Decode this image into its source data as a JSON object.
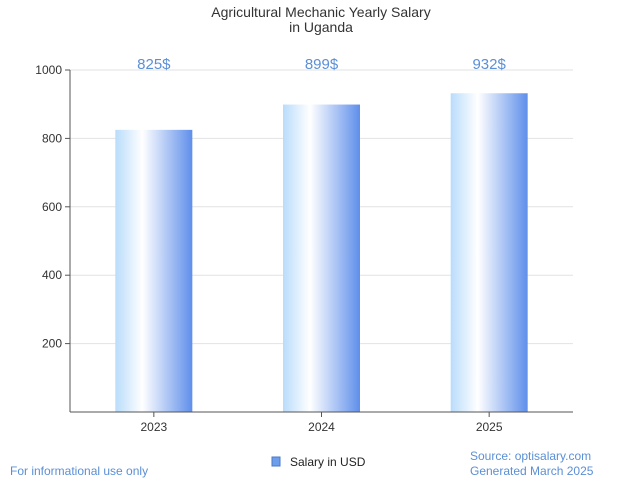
{
  "colors": {
    "accent": "#6d9eeb",
    "label_blue": "#5b8fd6",
    "bar_dark": "#5f8fea",
    "bar_light": "#ffffff",
    "bar_mid": "#b9dcfb",
    "axis": "#555555",
    "grid": "#e2e2e2"
  },
  "chart_data": {
    "type": "bar",
    "title": [
      "Agricultural Mechanic Yearly Salary",
      "in Uganda"
    ],
    "categories": [
      "2023",
      "2024",
      "2025"
    ],
    "series": [
      {
        "name": "Salary in USD",
        "values": [
          825,
          899,
          932
        ]
      }
    ],
    "data_labels": [
      "825$",
      "899$",
      "932$"
    ],
    "ylim": [
      0,
      1000
    ],
    "yticks": [
      200,
      400,
      600,
      800,
      1000
    ],
    "grid": true,
    "legend": "bottom-center"
  },
  "footer": {
    "left": "For informational use only",
    "source": "Source: optisalary.com",
    "generated": "Generated March 2025"
  }
}
